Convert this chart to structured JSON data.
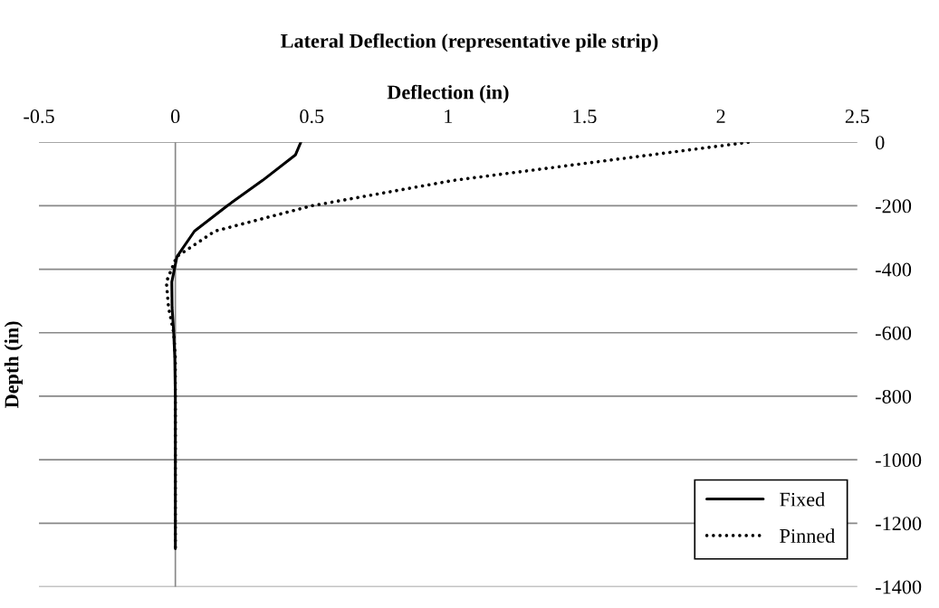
{
  "chart_data": {
    "type": "line",
    "title": "Lateral Deflection (representative pile strip)",
    "xlabel": "Deflection (in)",
    "ylabel": "Depth (in)",
    "xlim": [
      -0.5,
      2.5
    ],
    "xticks": [
      -0.5,
      0,
      0.5,
      1,
      1.5,
      2,
      2.5
    ],
    "ylim": [
      -1400,
      0
    ],
    "yticks": [
      -1400,
      -1200,
      -1000,
      -800,
      -600,
      -400,
      -200,
      0
    ],
    "grid": "y",
    "ref_lines": [
      {
        "axis": "x",
        "value": 0,
        "color": "#888888",
        "line_style": "solid"
      }
    ],
    "legend": "bottom right",
    "marker": "none",
    "series": [
      {
        "name": "Fixed",
        "color": "#000000",
        "line_style": "solid",
        "x": [
          0.46,
          0.44,
          0.32,
          0.19,
          0.07,
          0.006,
          -0.013,
          -0.012,
          -0.006,
          -0.002,
          0,
          0,
          0,
          0
        ],
        "values": [
          0,
          -40,
          -120,
          -200,
          -280,
          -360,
          -440,
          -520,
          -600,
          -680,
          -800,
          -1000,
          -1200,
          -1280
        ]
      },
      {
        "name": "Pinned",
        "color": "#000000",
        "line_style": "dotted",
        "x": [
          2.1,
          1.74,
          1.02,
          0.5,
          0.145,
          0.005,
          -0.033,
          -0.025,
          -0.006,
          0,
          0,
          0,
          0,
          0
        ],
        "values": [
          0,
          -40,
          -120,
          -200,
          -280,
          -360,
          -440,
          -520,
          -600,
          -680,
          -800,
          -1000,
          -1200,
          -1280
        ]
      }
    ]
  }
}
